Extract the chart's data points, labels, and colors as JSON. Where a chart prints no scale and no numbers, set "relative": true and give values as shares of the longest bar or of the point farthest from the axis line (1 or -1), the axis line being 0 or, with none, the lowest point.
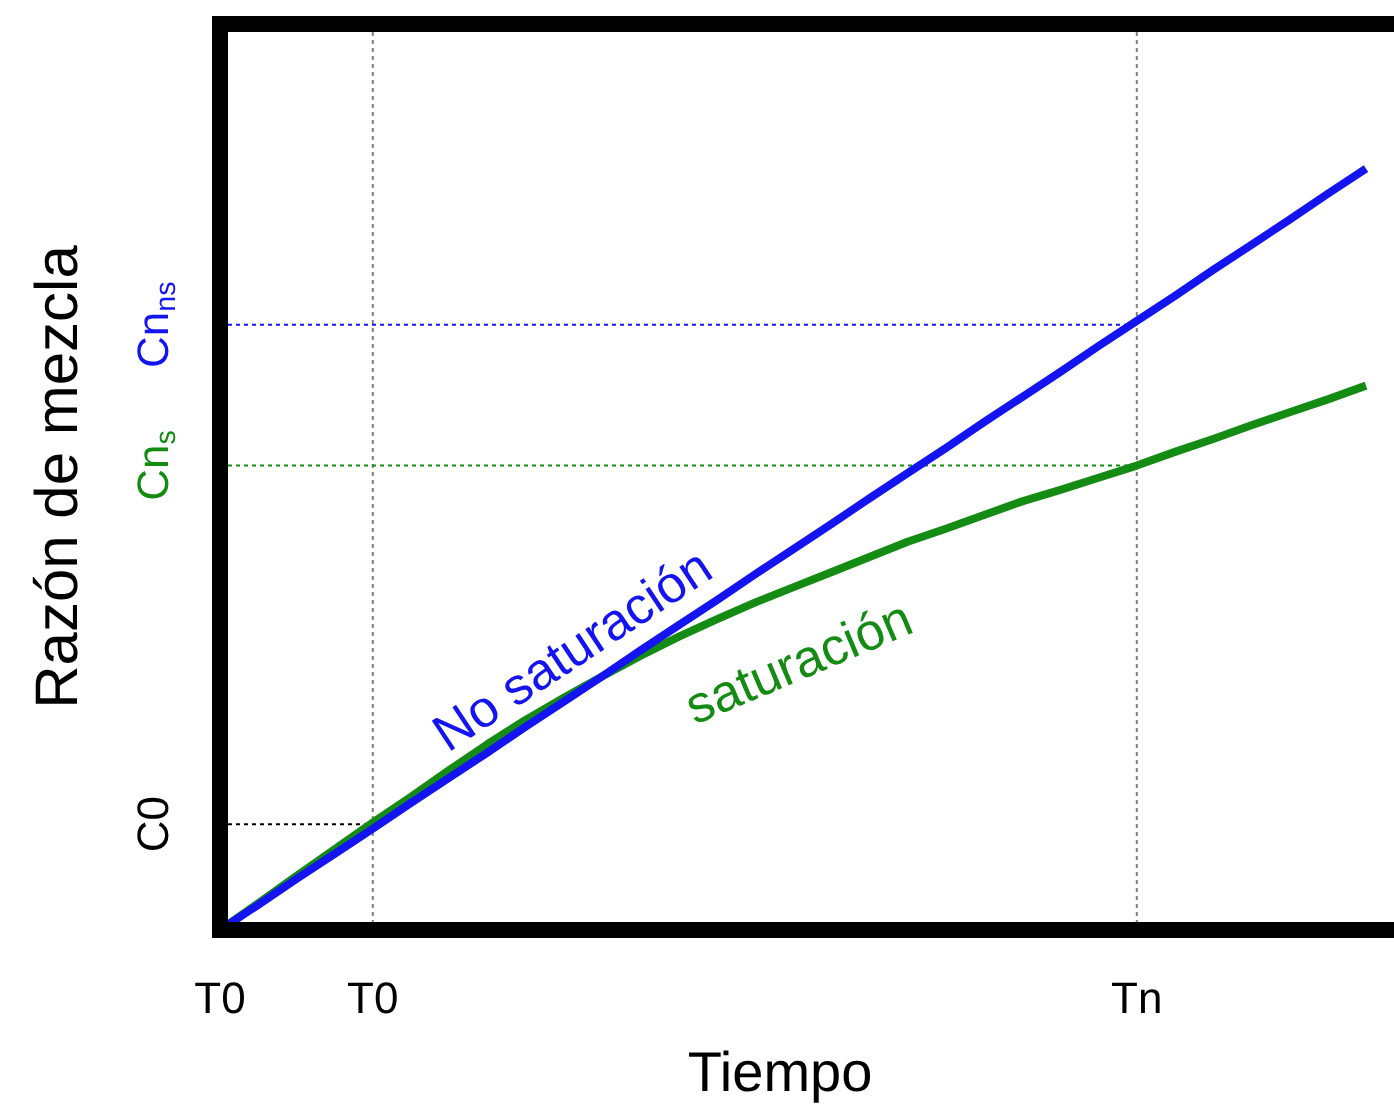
{
  "chart_data": {
    "type": "line",
    "xlabel": "Tiempo",
    "ylabel": "Razón de mezcla",
    "relative": true,
    "categories": [
      "T0",
      null,
      null,
      null,
      "T0",
      null,
      null,
      null,
      null,
      null,
      null,
      null,
      null,
      null,
      null,
      null,
      null,
      null,
      null,
      null,
      null,
      null,
      null,
      null,
      "Tn",
      null,
      null,
      null,
      null,
      null,
      null
    ],
    "series": [
      {
        "name": "No saturación",
        "color": "#1414f0",
        "values": [
          0,
          0.033,
          0.067,
          0.1,
          0.133,
          0.167,
          0.2,
          0.233,
          0.267,
          0.3,
          0.333,
          0.367,
          0.4,
          0.433,
          0.467,
          0.5,
          0.533,
          0.567,
          0.6,
          0.633,
          0.667,
          0.7,
          0.733,
          0.767,
          0.8,
          0.833,
          0.867,
          0.9,
          0.933,
          0.967,
          1
        ]
      },
      {
        "name": "saturación",
        "color": "#148c14",
        "values": [
          0,
          0.035,
          0.071,
          0.106,
          0.141,
          0.175,
          0.21,
          0.244,
          0.276,
          0.305,
          0.333,
          0.36,
          0.385,
          0.408,
          0.43,
          0.45,
          0.47,
          0.49,
          0.51,
          0.527,
          0.545,
          0.563,
          0.578,
          0.594,
          0.61,
          0.628,
          0.645,
          0.663,
          0.68,
          0.697,
          0.715
        ]
      }
    ],
    "ref_lines": [
      {
        "axis": "y",
        "value": 0.139,
        "label": "C0",
        "color": "#000000",
        "line_style": "dotted"
      },
      {
        "axis": "y",
        "value": 0.61,
        "label": "Cn$_{s}$",
        "color": "#148c14",
        "line_style": "dotted"
      },
      {
        "axis": "y",
        "value": 0.795,
        "label": "Cn$_{ns}$",
        "color": "#1414f0",
        "line_style": "dotted"
      }
    ],
    "grid": "x",
    "legend": false,
    "marker": "none",
    "line_style": "solid"
  }
}
